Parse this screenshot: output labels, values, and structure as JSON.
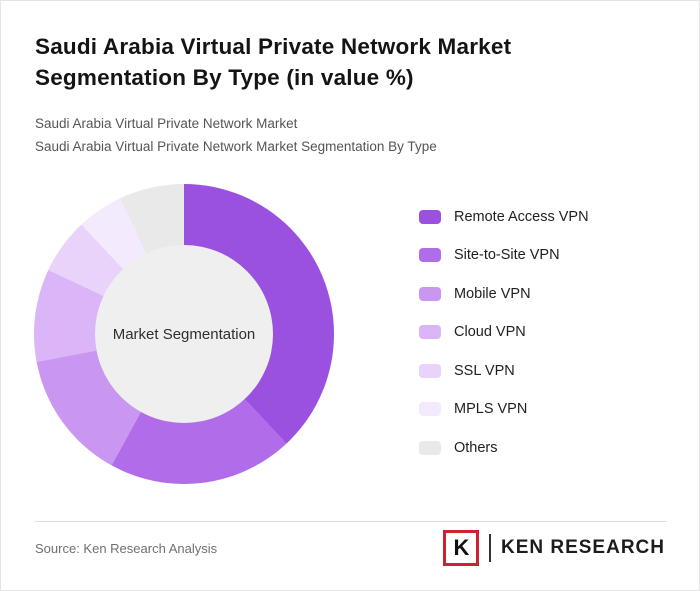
{
  "title": {
    "line1": "Saudi Arabia Virtual Private Network Market",
    "line2": "Segmentation By Type (in value %)"
  },
  "subtitle": {
    "line1": "Saudi Arabia Virtual Private Network Market",
    "line2": "Saudi Arabia Virtual Private Network Market Segmentation By Type"
  },
  "chart_data": {
    "type": "pie",
    "subtype": "donut",
    "title": "Saudi Arabia Virtual Private Network Market Segmentation By Type (in value %)",
    "center_label": "Market Segmentation",
    "legend_position": "right",
    "start_angle_deg": 0,
    "direction": "clockwise",
    "segments": [
      {
        "label": "Remote Access VPN",
        "value": 38,
        "color": "#9b51e0"
      },
      {
        "label": "Site-to-Site VPN",
        "value": 20,
        "color": "#b16ce9"
      },
      {
        "label": "Mobile VPN",
        "value": 14,
        "color": "#c996f1"
      },
      {
        "label": "Cloud VPN",
        "value": 10,
        "color": "#dab5f7"
      },
      {
        "label": "SSL VPN",
        "value": 6,
        "color": "#e9d3fb"
      },
      {
        "label": "MPLS VPN",
        "value": 5,
        "color": "#f4eafd"
      },
      {
        "label": "Others",
        "value": 7,
        "color": "#e9e9ea"
      }
    ]
  },
  "footer": {
    "source": "Source: Ken Research Analysis",
    "logo": {
      "k": "K",
      "text": "KEN RESEARCH",
      "brand_red": "#cf2030"
    }
  },
  "colors": {
    "center_circle": "#efefef",
    "divider": "#dddddd"
  }
}
